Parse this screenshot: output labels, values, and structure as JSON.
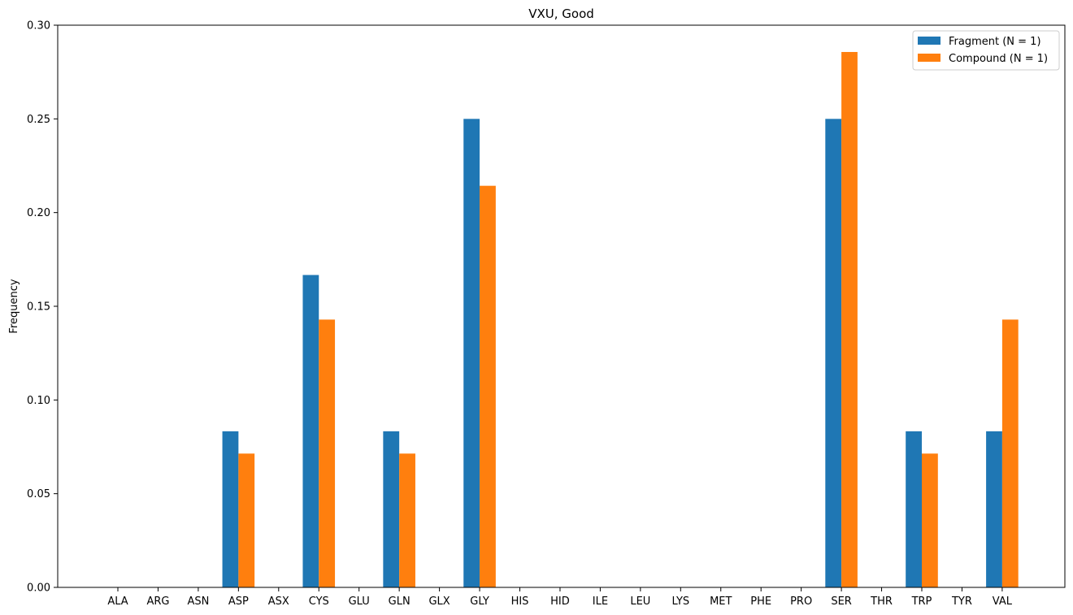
{
  "chart_data": {
    "type": "bar",
    "title": "VXU, Good",
    "xlabel": "",
    "ylabel": "Frequency",
    "ylim": [
      0,
      0.3
    ],
    "yticks": [
      "0.00",
      "0.05",
      "0.10",
      "0.15",
      "0.20",
      "0.25",
      "0.30"
    ],
    "legend_position": "top-right",
    "grid": false,
    "categories": [
      "ALA",
      "ARG",
      "ASN",
      "ASP",
      "ASX",
      "CYS",
      "GLU",
      "GLN",
      "GLX",
      "GLY",
      "HIS",
      "HID",
      "ILE",
      "LEU",
      "LYS",
      "MET",
      "PHE",
      "PRO",
      "SER",
      "THR",
      "TRP",
      "TYR",
      "VAL"
    ],
    "series": [
      {
        "name": "Fragment (N = 1)",
        "color": "#1f77b4",
        "values": [
          0,
          0,
          0,
          0.0833,
          0,
          0.1667,
          0,
          0.0833,
          0,
          0.25,
          0,
          0,
          0,
          0,
          0,
          0,
          0,
          0,
          0.25,
          0,
          0.0833,
          0,
          0.0833
        ]
      },
      {
        "name": "Compound (N = 1)",
        "color": "#ff7f0e",
        "values": [
          0,
          0,
          0,
          0.0714,
          0,
          0.1429,
          0,
          0.0714,
          0,
          0.2143,
          0,
          0,
          0,
          0,
          0,
          0,
          0,
          0,
          0.2857,
          0,
          0.0714,
          0,
          0.1429
        ]
      }
    ]
  }
}
